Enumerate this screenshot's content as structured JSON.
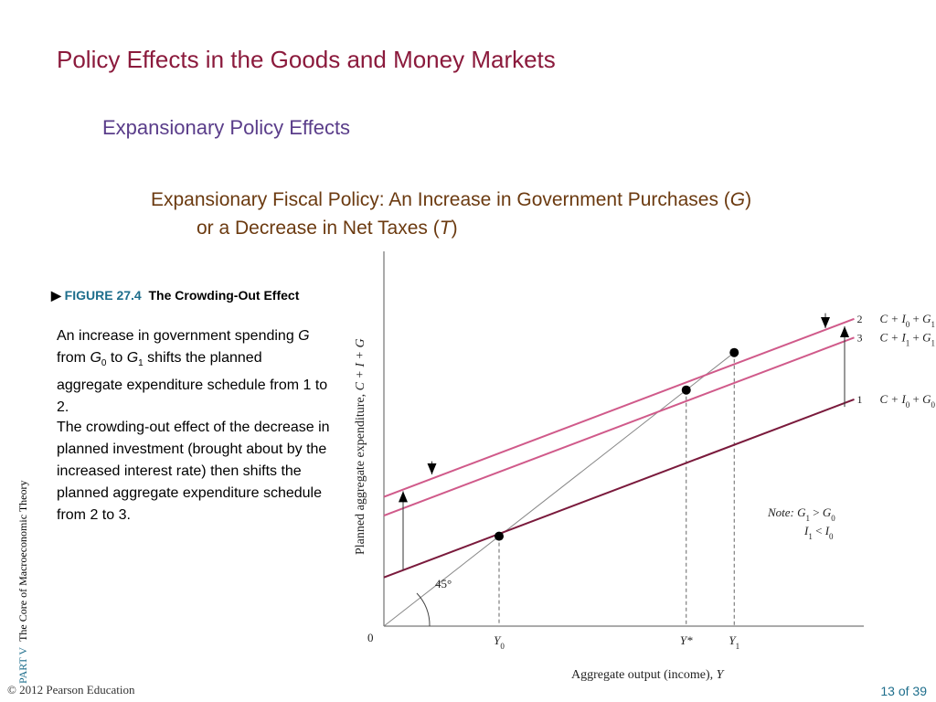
{
  "slide": {
    "title": "Policy Effects in the Goods and Money Markets",
    "subtitle": "Expansionary Policy Effects",
    "heading_line1_pre": "Expansionary Fiscal Policy: An Increase in Government Purchases (",
    "heading_line1_var": "G",
    "heading_line1_post": ")",
    "heading_line2_pre": "or a Decrease in Net Taxes (",
    "heading_line2_var": "T",
    "heading_line2_post": ")"
  },
  "figure": {
    "marker": "▶",
    "number": "FIGURE 27.4",
    "title": "The Crowding-Out Effect",
    "desc1_parts": [
      "An increase in government spending ",
      "G",
      " from ",
      "G",
      "0",
      " to ",
      "G",
      "1",
      " shifts the planned aggregate expenditure schedule from 1 to 2."
    ],
    "desc2": "The crowding-out effect of the decrease in planned investment (brought about by the increased interest rate) then shifts the planned aggregate expenditure schedule from 2 to 3."
  },
  "footer": {
    "part": "PART  V",
    "book": "The Core of Macroeconomic Theory",
    "copyright": "© 2012 Pearson Education",
    "page": "13 of 39"
  },
  "chart_data": {
    "type": "line",
    "x_range": [
      0,
      10
    ],
    "y_range": [
      0,
      10
    ],
    "xlabel": "Aggregate output (income), Y",
    "ylabel": "Planned aggregate expenditure, C + I + G",
    "origin_label": "0",
    "angle_label": "45°",
    "x_ticks": [
      {
        "label": "Y0",
        "x": 2.4
      },
      {
        "label": "Y*",
        "x": 6.3
      },
      {
        "label": "Y1",
        "x": 7.3
      }
    ],
    "lines": [
      {
        "id": "diag",
        "x": [
          0,
          7.3
        ],
        "y": [
          0,
          7.3
        ],
        "color": "#888888"
      },
      {
        "id": "1",
        "label_num": "1",
        "label": "C + I0 + G0",
        "x": [
          0,
          9.8
        ],
        "y": [
          1.3,
          6.05
        ],
        "color": "#7a1a3c"
      },
      {
        "id": "2",
        "label_num": "2",
        "label": "C + I0 + G1",
        "x": [
          0,
          9.8
        ],
        "y": [
          3.45,
          8.2
        ],
        "color": "#d05a8a"
      },
      {
        "id": "3",
        "label_num": "3",
        "label": "C + I1 + G1",
        "x": [
          0,
          9.8
        ],
        "y": [
          2.95,
          7.7
        ],
        "color": "#d05a8a"
      }
    ],
    "points": [
      {
        "x": 2.4,
        "y": 2.4
      },
      {
        "x": 6.3,
        "y": 6.3
      },
      {
        "x": 7.3,
        "y": 7.3
      }
    ],
    "arrows": [
      {
        "x": 0.4,
        "from": 1.5,
        "to": 3.6,
        "dir": "up"
      },
      {
        "x": 9.6,
        "from": 5.85,
        "to": 8.0,
        "dir": "up"
      },
      {
        "x": 1.0,
        "from": 4.4,
        "to": 4.05,
        "dir": "down"
      },
      {
        "x": 9.2,
        "from": 8.35,
        "to": 7.95,
        "dir": "down"
      }
    ],
    "note": {
      "label": "Note:",
      "line1": "G1 > G0",
      "line2": "I1 < I0"
    },
    "colors": {
      "axis": "#555555",
      "guide": "#666666"
    }
  }
}
